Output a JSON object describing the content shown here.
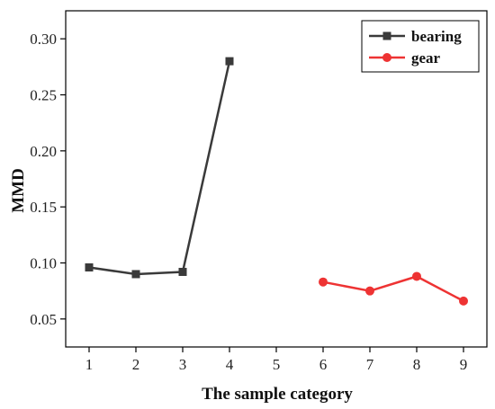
{
  "chart_data": {
    "type": "line",
    "xlabel": "The sample category",
    "ylabel": "MMD",
    "xlim": [
      0.5,
      9.5
    ],
    "ylim": [
      0.025,
      0.325
    ],
    "x_ticks": [
      1,
      2,
      3,
      4,
      5,
      6,
      7,
      8,
      9
    ],
    "y_ticks": [
      0.05,
      0.1,
      0.15,
      0.2,
      0.25,
      0.3
    ],
    "y_tick_labels": [
      "0.05",
      "0.10",
      "0.15",
      "0.20",
      "0.25",
      "0.30"
    ],
    "grid": false,
    "legend_position": "top-right",
    "series": [
      {
        "name": "bearing",
        "color": "#3a3a3a",
        "marker": "square",
        "points": [
          {
            "x": 1,
            "y": 0.096
          },
          {
            "x": 2,
            "y": 0.09
          },
          {
            "x": 3,
            "y": 0.092
          },
          {
            "x": 4,
            "y": 0.28
          }
        ]
      },
      {
        "name": "gear",
        "color": "#ee3333",
        "marker": "circle",
        "points": [
          {
            "x": 6,
            "y": 0.083
          },
          {
            "x": 7,
            "y": 0.075
          },
          {
            "x": 8,
            "y": 0.088
          },
          {
            "x": 9,
            "y": 0.066
          }
        ]
      }
    ]
  }
}
